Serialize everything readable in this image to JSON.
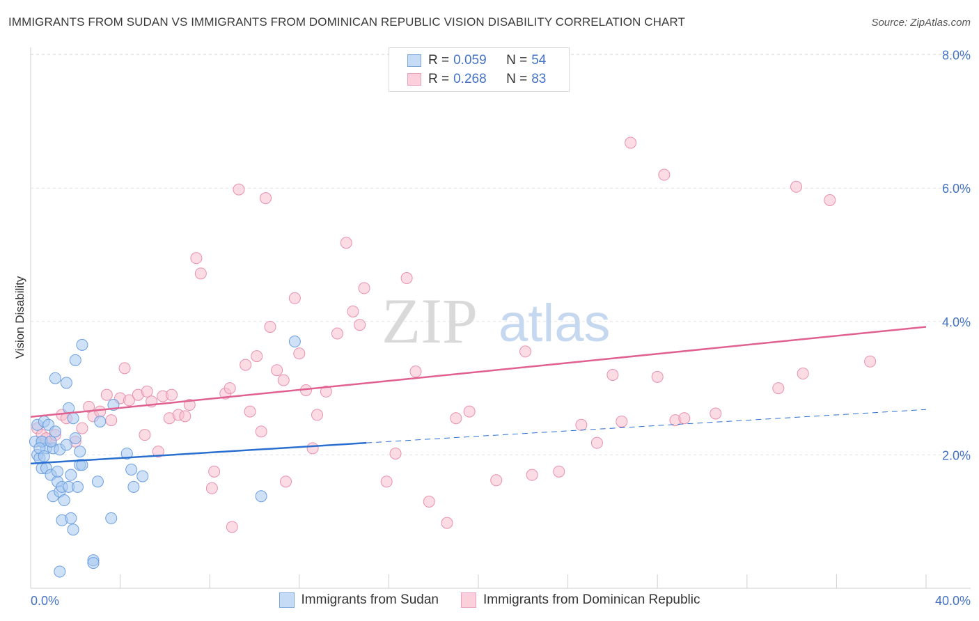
{
  "header": {
    "title": "IMMIGRANTS FROM SUDAN VS IMMIGRANTS FROM DOMINICAN REPUBLIC VISION DISABILITY CORRELATION CHART",
    "source": "Source: ZipAtlas.com"
  },
  "colors": {
    "sudan_fill": "#a8c8f0",
    "sudan_stroke": "#6a9ee0",
    "sudan_line": "#2a6fcf",
    "dr_fill": "#f8c0d0",
    "dr_stroke": "#e890ac",
    "dr_line": "#e06090",
    "axis_text": "#4472c4"
  },
  "legend": {
    "r_label": "R =",
    "n_label": "N =",
    "sudan_r": "0.059",
    "sudan_n": "54",
    "dr_r": "0.268",
    "dr_n": "83"
  },
  "watermark": {
    "zip": "ZIP",
    "atlas": "atlas"
  },
  "chart_data": {
    "type": "scatter",
    "title": "IMMIGRANTS FROM SUDAN VS IMMIGRANTS FROM DOMINICAN REPUBLIC VISION DISABILITY CORRELATION CHART",
    "xlabel": "",
    "ylabel": "Vision Disability",
    "xlim": [
      0,
      40
    ],
    "ylim": [
      0,
      8.4
    ],
    "x_tick_labels": [
      "0.0%",
      "40.0%"
    ],
    "y_ticks": [
      2,
      4,
      6,
      8
    ],
    "y_tick_labels": [
      "2.0%",
      "4.0%",
      "6.0%",
      "8.0%"
    ],
    "grid": true,
    "series": [
      {
        "name": "Immigrants from Sudan",
        "r": 0.059,
        "n": 54,
        "trend": {
          "x": [
            0,
            15
          ],
          "y": [
            1.87,
            2.18
          ],
          "dashed_extension": {
            "x": [
              15,
              40
            ],
            "y": [
              2.18,
              2.68
            ]
          }
        },
        "points": [
          [
            0.2,
            2.2
          ],
          [
            0.3,
            2.0
          ],
          [
            0.3,
            2.45
          ],
          [
            0.4,
            1.95
          ],
          [
            0.5,
            2.2
          ],
          [
            0.5,
            1.8
          ],
          [
            0.6,
            2.5
          ],
          [
            0.7,
            1.8
          ],
          [
            0.7,
            2.1
          ],
          [
            0.8,
            2.45
          ],
          [
            0.9,
            1.7
          ],
          [
            1.0,
            2.1
          ],
          [
            1.0,
            1.38
          ],
          [
            1.1,
            2.35
          ],
          [
            1.1,
            3.15
          ],
          [
            1.2,
            1.6
          ],
          [
            1.3,
            1.45
          ],
          [
            1.3,
            2.08
          ],
          [
            1.4,
            1.52
          ],
          [
            1.4,
            1.02
          ],
          [
            1.5,
            1.32
          ],
          [
            1.6,
            2.15
          ],
          [
            1.6,
            3.08
          ],
          [
            1.7,
            2.7
          ],
          [
            1.7,
            1.52
          ],
          [
            1.8,
            1.7
          ],
          [
            1.8,
            1.05
          ],
          [
            1.9,
            2.55
          ],
          [
            1.9,
            0.88
          ],
          [
            2.0,
            3.42
          ],
          [
            2.1,
            1.52
          ],
          [
            2.2,
            1.85
          ],
          [
            2.2,
            2.05
          ],
          [
            2.3,
            1.85
          ],
          [
            2.3,
            3.65
          ],
          [
            2.8,
            0.42
          ],
          [
            2.8,
            0.38
          ],
          [
            3.0,
            1.6
          ],
          [
            3.1,
            2.5
          ],
          [
            3.6,
            1.05
          ],
          [
            3.7,
            2.75
          ],
          [
            4.3,
            2.02
          ],
          [
            4.5,
            1.78
          ],
          [
            4.6,
            1.52
          ],
          [
            5.0,
            1.68
          ],
          [
            10.3,
            1.38
          ],
          [
            11.8,
            3.7
          ],
          [
            0.5,
            2.2
          ],
          [
            0.4,
            2.1
          ],
          [
            0.6,
            1.98
          ],
          [
            1.3,
            0.25
          ],
          [
            2.0,
            2.25
          ],
          [
            0.9,
            2.2
          ],
          [
            1.2,
            1.75
          ]
        ]
      },
      {
        "name": "Immigrants from Dominican Republic",
        "r": 0.268,
        "n": 83,
        "trend": {
          "x": [
            0,
            40
          ],
          "y": [
            2.57,
            3.92
          ]
        },
        "points": [
          [
            0.3,
            2.4
          ],
          [
            0.5,
            2.3
          ],
          [
            0.7,
            2.25
          ],
          [
            0.9,
            2.2
          ],
          [
            1.1,
            2.3
          ],
          [
            1.4,
            2.6
          ],
          [
            1.6,
            2.55
          ],
          [
            2.0,
            2.2
          ],
          [
            2.3,
            2.4
          ],
          [
            2.6,
            2.72
          ],
          [
            2.8,
            2.58
          ],
          [
            3.1,
            2.65
          ],
          [
            3.4,
            2.9
          ],
          [
            3.6,
            2.52
          ],
          [
            4.0,
            2.85
          ],
          [
            4.2,
            3.3
          ],
          [
            4.4,
            2.82
          ],
          [
            4.8,
            2.9
          ],
          [
            5.1,
            2.3
          ],
          [
            5.2,
            2.95
          ],
          [
            5.4,
            2.8
          ],
          [
            5.7,
            2.05
          ],
          [
            5.9,
            2.88
          ],
          [
            6.2,
            2.55
          ],
          [
            6.3,
            2.9
          ],
          [
            6.6,
            2.6
          ],
          [
            6.9,
            2.58
          ],
          [
            7.1,
            2.75
          ],
          [
            7.4,
            4.95
          ],
          [
            7.6,
            4.72
          ],
          [
            8.2,
            1.75
          ],
          [
            8.1,
            1.5
          ],
          [
            8.7,
            2.92
          ],
          [
            8.9,
            3.0
          ],
          [
            9.0,
            0.92
          ],
          [
            9.3,
            5.98
          ],
          [
            9.6,
            3.35
          ],
          [
            9.8,
            2.65
          ],
          [
            10.1,
            3.48
          ],
          [
            10.3,
            2.35
          ],
          [
            10.5,
            5.85
          ],
          [
            10.7,
            3.92
          ],
          [
            11.0,
            3.27
          ],
          [
            11.3,
            3.12
          ],
          [
            11.4,
            1.6
          ],
          [
            11.8,
            4.35
          ],
          [
            12.0,
            3.52
          ],
          [
            12.3,
            2.97
          ],
          [
            12.6,
            2.1
          ],
          [
            12.8,
            2.6
          ],
          [
            13.2,
            2.95
          ],
          [
            13.7,
            3.82
          ],
          [
            14.1,
            5.18
          ],
          [
            14.4,
            4.15
          ],
          [
            14.7,
            3.95
          ],
          [
            14.9,
            4.5
          ],
          [
            15.9,
            1.6
          ],
          [
            16.3,
            2.02
          ],
          [
            16.8,
            4.65
          ],
          [
            17.2,
            3.25
          ],
          [
            17.8,
            1.3
          ],
          [
            18.6,
            0.98
          ],
          [
            19.0,
            2.55
          ],
          [
            19.6,
            2.65
          ],
          [
            20.8,
            1.62
          ],
          [
            22.1,
            3.55
          ],
          [
            22.4,
            1.7
          ],
          [
            23.6,
            1.75
          ],
          [
            24.6,
            2.45
          ],
          [
            25.3,
            2.18
          ],
          [
            26.0,
            3.2
          ],
          [
            26.4,
            2.5
          ],
          [
            26.8,
            6.68
          ],
          [
            28.3,
            6.2
          ],
          [
            28.0,
            3.17
          ],
          [
            28.8,
            2.52
          ],
          [
            29.2,
            2.55
          ],
          [
            30.6,
            2.62
          ],
          [
            33.4,
            3.0
          ],
          [
            34.2,
            6.02
          ],
          [
            34.5,
            3.22
          ],
          [
            35.7,
            5.82
          ],
          [
            37.5,
            3.4
          ]
        ]
      }
    ]
  },
  "bottom_legend": {
    "sudan": "Immigrants from Sudan",
    "dr": "Immigrants from Dominican Republic"
  }
}
